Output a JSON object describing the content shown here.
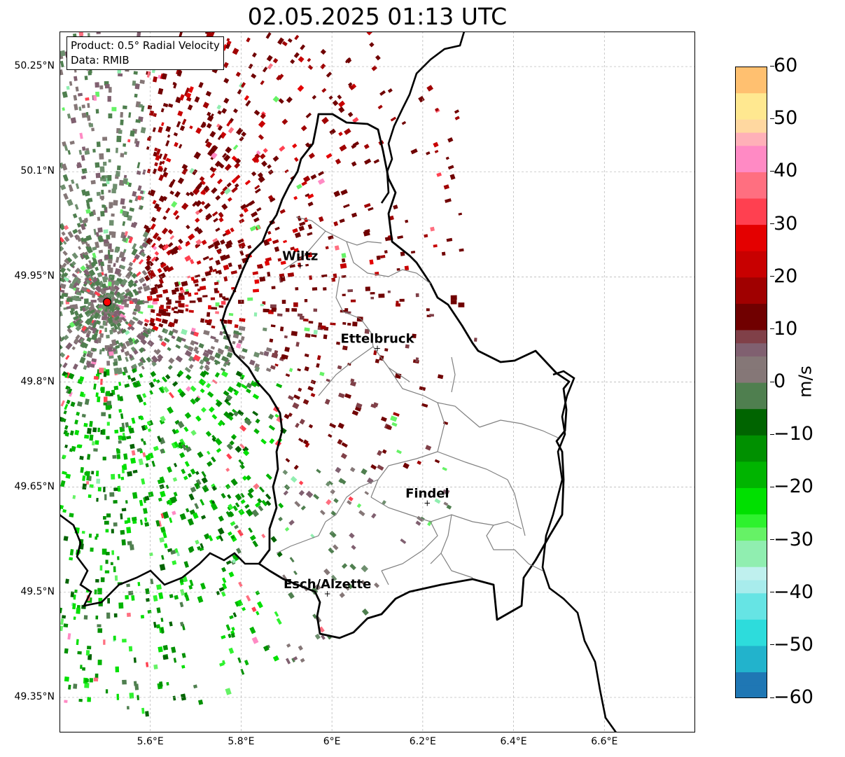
{
  "title": "02.05.2025 01:13 UTC",
  "info": {
    "product": "Product: 0.5° Radial Velocity",
    "data": "Data: RMIB"
  },
  "axes": {
    "y_ticks": [
      "50.25°N",
      "50.1°N",
      "49.95°N",
      "49.8°N",
      "49.65°N",
      "49.5°N",
      "49.35°N"
    ],
    "x_ticks": [
      "5.6°E",
      "5.8°E",
      "6°E",
      "6.2°E",
      "6.4°E",
      "6.6°E"
    ],
    "lon_range": [
      5.4,
      6.8
    ],
    "lat_range": [
      49.3,
      50.3
    ]
  },
  "cities": [
    {
      "name": "Wiltz",
      "lon": 5.93,
      "lat": 49.966
    },
    {
      "name": "Ettelbruck",
      "lon": 6.1,
      "lat": 49.848
    },
    {
      "name": "Findel",
      "lon": 6.21,
      "lat": 49.627
    },
    {
      "name": "Esch/Alzette",
      "lon": 5.99,
      "lat": 49.498
    }
  ],
  "radar_site": {
    "lon": 5.505,
    "lat": 49.914
  },
  "colorbar": {
    "label": "m/s",
    "range": [
      -60,
      60
    ],
    "ticks": [
      "60",
      "50",
      "40",
      "30",
      "20",
      "10",
      "0",
      "−10",
      "−20",
      "−30",
      "−40",
      "−50",
      "−60"
    ],
    "tick_values": [
      60,
      50,
      40,
      30,
      20,
      10,
      0,
      -10,
      -20,
      -30,
      -40,
      -50,
      -60
    ],
    "stops": [
      {
        "v": -60,
        "c": "#1f77b4"
      },
      {
        "v": -55,
        "c": "#22b3cc"
      },
      {
        "v": -50,
        "c": "#2ddcdc"
      },
      {
        "v": -45,
        "c": "#66e4e4"
      },
      {
        "v": -40,
        "c": "#a8ecec"
      },
      {
        "v": -38,
        "c": "#bff0ee"
      },
      {
        "v": -35,
        "c": "#90eeb0"
      },
      {
        "v": -32,
        "c": "#66f266"
      },
      {
        "v": -28,
        "c": "#2ef22e"
      },
      {
        "v": -25,
        "c": "#00e000"
      },
      {
        "v": -20,
        "c": "#00b400"
      },
      {
        "v": -15,
        "c": "#009000"
      },
      {
        "v": -10,
        "c": "#006400"
      },
      {
        "v": -7,
        "c": "#4f7f4f"
      },
      {
        "v": -2,
        "c": "#6f8f6f"
      },
      {
        "v": 0,
        "c": "#857777"
      },
      {
        "v": 3,
        "c": "#806070"
      },
      {
        "v": 6,
        "c": "#804048"
      },
      {
        "v": 9,
        "c": "#7a1010"
      },
      {
        "v": 10,
        "c": "#700000"
      },
      {
        "v": 15,
        "c": "#a00000"
      },
      {
        "v": 20,
        "c": "#c80000"
      },
      {
        "v": 25,
        "c": "#e40000"
      },
      {
        "v": 28,
        "c": "#ff1010"
      },
      {
        "v": 30,
        "c": "#ff4050"
      },
      {
        "v": 35,
        "c": "#ff6f80"
      },
      {
        "v": 40,
        "c": "#ff8ac4"
      },
      {
        "v": 43,
        "c": "#ffb0b8"
      },
      {
        "v": 46,
        "c": "#ffd8a0"
      },
      {
        "v": 50,
        "c": "#ffe890"
      },
      {
        "v": 55,
        "c": "#ffc070"
      },
      {
        "v": 60,
        "c": "#ff9e50"
      }
    ]
  }
}
